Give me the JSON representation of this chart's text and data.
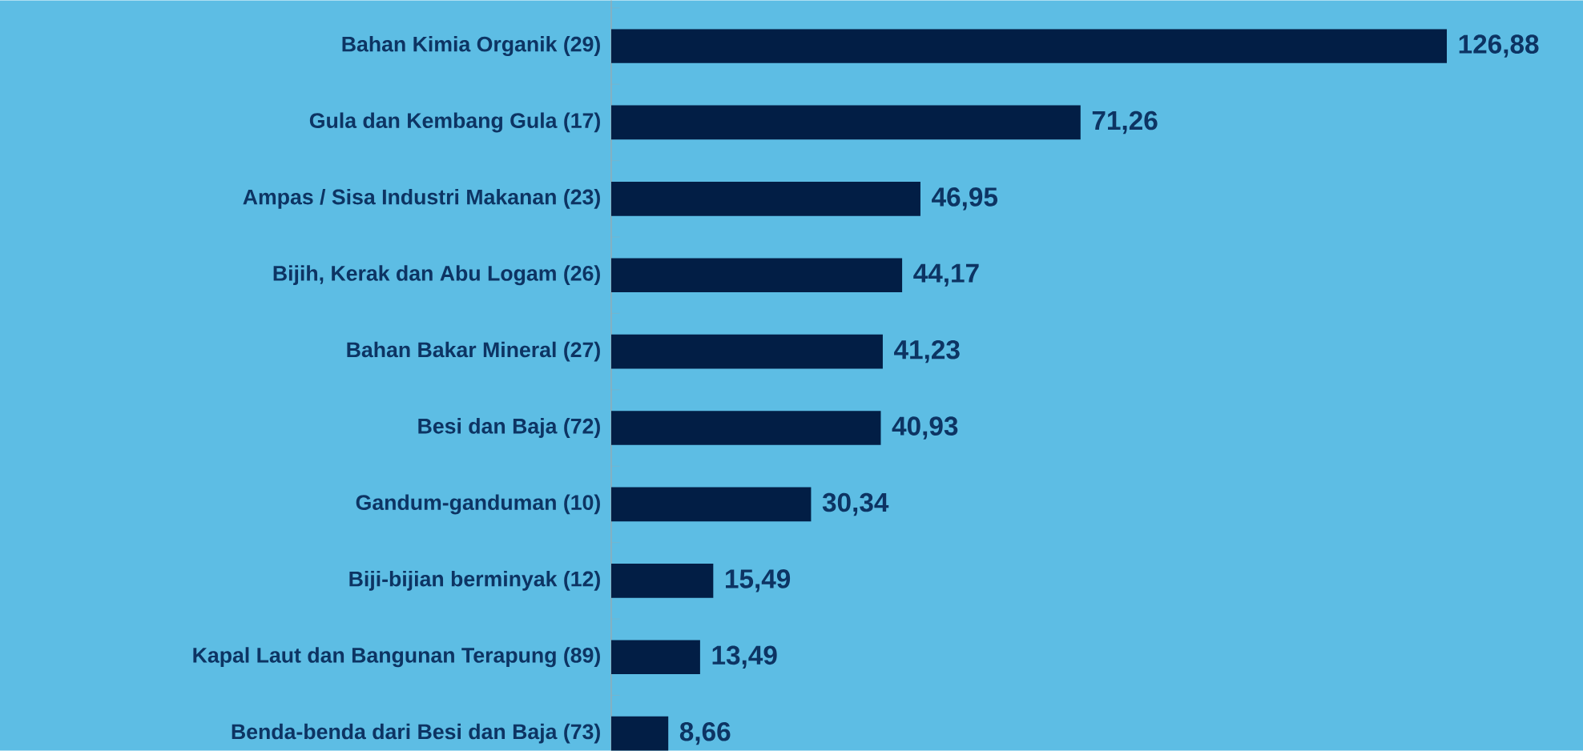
{
  "chart_data": {
    "type": "bar",
    "orientation": "horizontal",
    "categories": [
      "Bahan Kimia Organik (29)",
      "Gula dan Kembang Gula (17)",
      "Ampas / Sisa Industri Makanan (23)",
      "Bijih, Kerak dan Abu Logam (26)",
      "Bahan Bakar Mineral (27)",
      "Besi dan Baja (72)",
      "Gandum-ganduman (10)",
      "Biji-bijian berminyak (12)",
      "Kapal Laut dan Bangunan Terapung (89)",
      "Benda-benda dari Besi dan Baja (73)"
    ],
    "values": [
      126.88,
      71.26,
      46.95,
      44.17,
      41.23,
      40.93,
      30.34,
      15.49,
      13.49,
      8.66
    ],
    "value_labels": [
      "126,88",
      "71,26",
      "46,95",
      "44,17",
      "41,23",
      "40,93",
      "30,34",
      "15,49",
      "13,49",
      "8,66"
    ],
    "color": "#021e45"
  }
}
